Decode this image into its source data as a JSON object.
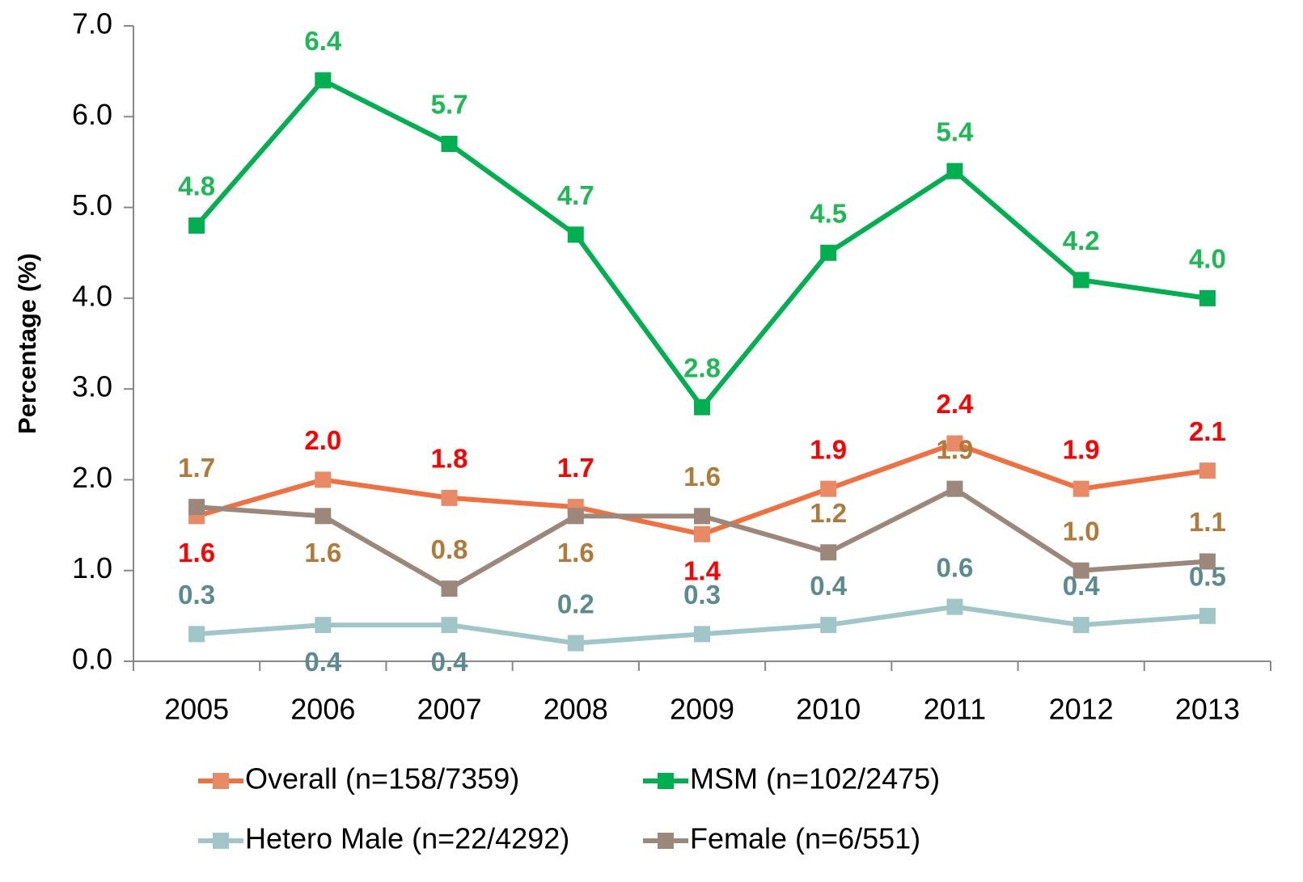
{
  "chart_data": {
    "type": "line",
    "y_label": "Percentage (%)",
    "categories": [
      "2005",
      "2006",
      "2007",
      "2008",
      "2009",
      "2010",
      "2011",
      "2012",
      "2013"
    ],
    "series": [
      {
        "name": "Overall (n=158/7359)",
        "color": "#f0703f",
        "marker_color": "#e98a66",
        "label_color": "#ff0000",
        "values": [
          1.6,
          2.0,
          1.8,
          1.7,
          1.4,
          1.9,
          2.4,
          1.9,
          2.1
        ],
        "value_labels": [
          "1.6",
          "2.0",
          "1.8",
          "1.7",
          "1.4",
          "1.9",
          "2.4",
          "1.9",
          "2.1"
        ]
      },
      {
        "name": "MSM (n=102/2475)",
        "color": "#00b050",
        "marker_color": "#00b050",
        "label_color": "#1db954",
        "values": [
          4.8,
          6.4,
          5.7,
          4.7,
          2.8,
          4.5,
          5.4,
          4.2,
          4.0
        ],
        "value_labels": [
          "4.8",
          "6.4",
          "5.7",
          "4.7",
          "2.8",
          "4.5",
          "5.4",
          "4.2",
          "4.0"
        ]
      },
      {
        "name": "Hetero Male (n=22/4292)",
        "color": "#a0c6c8",
        "marker_color": "#a0c6c8",
        "label_color": "#5b8a8f",
        "values": [
          0.3,
          0.4,
          0.4,
          0.2,
          0.3,
          0.4,
          0.6,
          0.4,
          0.5
        ],
        "value_labels": [
          "0.3",
          "0.4",
          "0.4",
          "0.2",
          "0.3",
          "0.4",
          "0.6",
          "0.4",
          "0.5"
        ]
      },
      {
        "name": "Female (n=6/551)",
        "color": "#9c877b",
        "marker_color": "#9c877b",
        "label_color": "#b07a3a",
        "values": [
          1.7,
          1.6,
          0.8,
          1.6,
          1.6,
          1.2,
          1.9,
          1.0,
          1.1
        ],
        "value_labels": [
          "1.7",
          "1.6",
          "0.8",
          "1.6",
          "1.6",
          "1.2",
          "1.9",
          "1.0",
          "1.1"
        ]
      }
    ],
    "ylim": [
      0,
      7
    ],
    "yticks": [
      {
        "value": 0,
        "label": "0.0"
      },
      {
        "value": 1,
        "label": "1.0"
      },
      {
        "value": 2,
        "label": "2.0"
      },
      {
        "value": 3,
        "label": "3.0"
      },
      {
        "value": 4,
        "label": "4.0"
      },
      {
        "value": 5,
        "label": "5.0"
      },
      {
        "value": 6,
        "label": "6.0"
      },
      {
        "value": 7,
        "label": "7.0"
      }
    ],
    "legend": "bottom"
  }
}
